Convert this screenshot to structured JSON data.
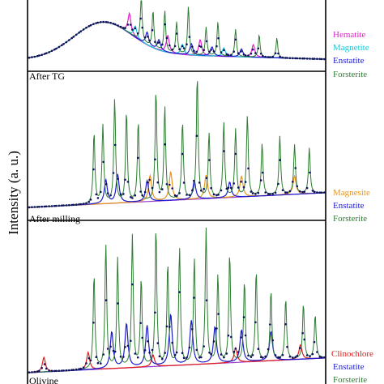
{
  "chart_data": [
    {
      "type": "line",
      "panel": "top",
      "sample_label": "After TG",
      "ylabel": "Intensity (a. u.)",
      "x": [
        0,
        2,
        4,
        6,
        8,
        10,
        12,
        14,
        16,
        18,
        20,
        22,
        24,
        26,
        28,
        30,
        32,
        34,
        36,
        38,
        40,
        42,
        44,
        46,
        48,
        50,
        52,
        54,
        56,
        58,
        60,
        62,
        64,
        66,
        68,
        70,
        72,
        74,
        76,
        78,
        80,
        82,
        84,
        86,
        88,
        90,
        92,
        94,
        96,
        98,
        100
      ],
      "series": [
        {
          "name": "Hematite",
          "color": "#e020c8",
          "peaks": [
            [
              34,
              0.35
            ],
            [
              47,
              0.3
            ],
            [
              58,
              0.28
            ],
            [
              76,
              0.22
            ]
          ]
        },
        {
          "name": "Magnetite",
          "color": "#18c8d8",
          "peaks": [
            [
              36,
              0.2
            ],
            [
              52,
              0.18
            ],
            [
              66,
              0.15
            ]
          ]
        },
        {
          "name": "Enstatite",
          "color": "#1c1ccc",
          "peaks": [
            [
              40,
              0.22
            ],
            [
              44,
              0.18
            ],
            [
              55,
              0.2
            ],
            [
              62,
              0.16
            ],
            [
              72,
              0.14
            ]
          ]
        },
        {
          "name": "Forsterite",
          "color": "#2e7d32",
          "peaks": [
            [
              38,
              0.8
            ],
            [
              42,
              0.65
            ],
            [
              46,
              0.72
            ],
            [
              50,
              0.55
            ],
            [
              54,
              0.85
            ],
            [
              60,
              0.5
            ],
            [
              64,
              0.6
            ],
            [
              70,
              0.48
            ],
            [
              78,
              0.4
            ],
            [
              84,
              0.35
            ]
          ]
        }
      ]
    },
    {
      "type": "line",
      "panel": "middle",
      "sample_label": "After milling",
      "series": [
        {
          "name": "Magnesite",
          "color": "#e8961c",
          "peaks": [
            [
              41,
              0.2
            ],
            [
              48,
              0.22
            ],
            [
              60,
              0.18
            ],
            [
              72,
              0.16
            ],
            [
              90,
              0.14
            ]
          ]
        },
        {
          "name": "Enstatite",
          "color": "#1c1ccc",
          "peaks": [
            [
              26,
              0.18
            ],
            [
              30,
              0.22
            ],
            [
              40,
              0.16
            ],
            [
              56,
              0.14
            ],
            [
              68,
              0.12
            ]
          ]
        },
        {
          "name": "Forsterite",
          "color": "#2e7d32",
          "peaks": [
            [
              22,
              0.55
            ],
            [
              25,
              0.6
            ],
            [
              29,
              0.8
            ],
            [
              33,
              0.7
            ],
            [
              37,
              0.62
            ],
            [
              43,
              0.85
            ],
            [
              46,
              0.72
            ],
            [
              52,
              0.6
            ],
            [
              57,
              0.95
            ],
            [
              61,
              0.5
            ],
            [
              66,
              0.58
            ],
            [
              70,
              0.52
            ],
            [
              74,
              0.62
            ],
            [
              79,
              0.4
            ],
            [
              85,
              0.45
            ],
            [
              90,
              0.38
            ],
            [
              95,
              0.35
            ]
          ]
        }
      ]
    },
    {
      "type": "line",
      "panel": "bottom",
      "sample_label": "Olivine",
      "series": [
        {
          "name": "Clinochlore",
          "color": "#e01818",
          "peaks": [
            [
              5,
              0.1
            ],
            [
              20,
              0.12
            ],
            [
              42,
              0.08
            ],
            [
              70,
              0.1
            ],
            [
              92,
              0.1
            ]
          ]
        },
        {
          "name": "Enstatite",
          "color": "#1c1ccc",
          "peaks": [
            [
              28,
              0.25
            ],
            [
              33,
              0.3
            ],
            [
              40,
              0.28
            ],
            [
              48,
              0.35
            ],
            [
              55,
              0.3
            ],
            [
              63,
              0.25
            ],
            [
              72,
              0.22
            ],
            [
              82,
              0.2
            ]
          ]
        },
        {
          "name": "Forsterite",
          "color": "#2e7d32",
          "peaks": [
            [
              22,
              0.65
            ],
            [
              26,
              0.85
            ],
            [
              30,
              0.75
            ],
            [
              35,
              0.9
            ],
            [
              38,
              0.6
            ],
            [
              43,
              0.95
            ],
            [
              47,
              0.7
            ],
            [
              51,
              0.8
            ],
            [
              56,
              0.72
            ],
            [
              60,
              0.92
            ],
            [
              64,
              0.6
            ],
            [
              68,
              0.75
            ],
            [
              73,
              0.55
            ],
            [
              77,
              0.62
            ],
            [
              82,
              0.48
            ],
            [
              87,
              0.42
            ],
            [
              93,
              0.38
            ],
            [
              97,
              0.3
            ]
          ]
        }
      ]
    }
  ]
}
